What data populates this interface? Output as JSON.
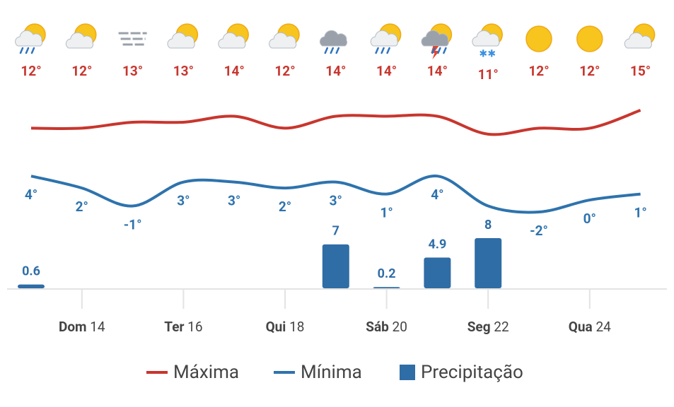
{
  "chart_data": {
    "type": "weather",
    "categories": [
      null,
      "Dom 14",
      null,
      "Ter 16",
      null,
      "Qui 18",
      null,
      "Sáb 20",
      null,
      "Seg 22",
      null,
      "Qua 24",
      null
    ],
    "series": [
      {
        "name": "Máxima",
        "color": "#c8362e",
        "values": [
          12,
          12,
          13,
          13,
          14,
          12,
          14,
          14,
          14,
          11,
          12,
          12,
          15
        ],
        "value_labels": [
          "12°",
          "12°",
          "13°",
          "13°",
          "14°",
          "12°",
          "14°",
          "14°",
          "14°",
          "11°",
          "12°",
          "12°",
          "15°"
        ]
      },
      {
        "name": "Mínima",
        "color": "#2e73ad",
        "values": [
          4,
          2,
          -1,
          3,
          3,
          2,
          3,
          1,
          4,
          -1,
          -2,
          0,
          1
        ],
        "value_labels": [
          "4°",
          "2°",
          "-1°",
          "3°",
          "3°",
          "2°",
          "3°",
          "1°",
          "4°",
          null,
          "-2°",
          "0°",
          "1°"
        ]
      },
      {
        "name": "Precipitação",
        "color": "#2f6da6",
        "values": [
          0.6,
          null,
          null,
          null,
          null,
          null,
          7,
          0.2,
          4.9,
          8,
          null,
          null,
          null
        ]
      }
    ]
  }
}
